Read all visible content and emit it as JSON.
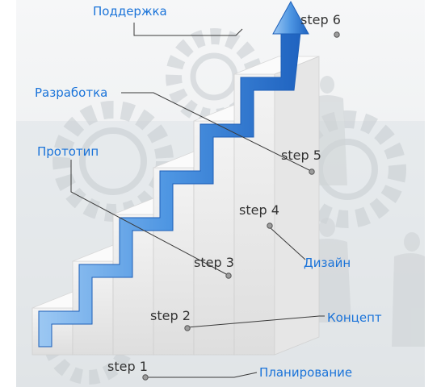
{
  "colors": {
    "accent": "#1a73d9",
    "arrow_light": "#7fb6ef",
    "arrow_dark": "#2c6fc4",
    "step_text": "#333333",
    "leader_line": "#3a3a3a"
  },
  "background": {
    "icons": [
      "gear-icon",
      "gear-icon",
      "gear-icon",
      "gear-icon"
    ],
    "photo": "business-people-silhouettes"
  },
  "steps": [
    {
      "step_label": "step 1",
      "phase_label": "Планирование"
    },
    {
      "step_label": "step 2",
      "phase_label": "Концепт"
    },
    {
      "step_label": "step 3",
      "phase_label": "Прототип"
    },
    {
      "step_label": "step 4",
      "phase_label": "Дизайн"
    },
    {
      "step_label": "step 5",
      "phase_label": "Разработка"
    },
    {
      "step_label": "step 6",
      "phase_label": "Поддержка"
    }
  ]
}
